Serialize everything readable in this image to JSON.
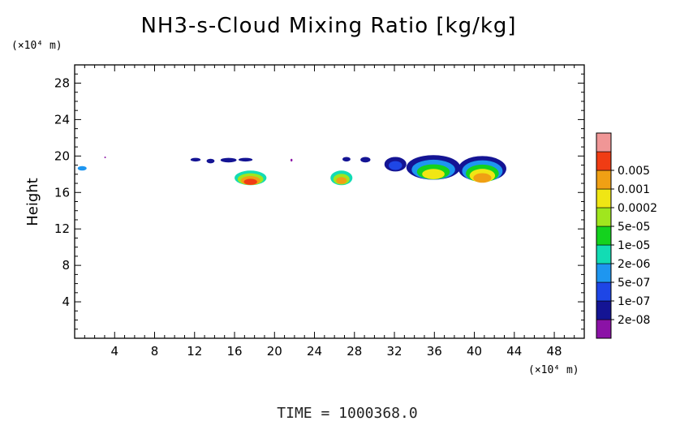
{
  "chart_data": {
    "type": "heatmap",
    "title": "NH3-s-Cloud Mixing Ratio [kg/kg]",
    "ylabel": "Height",
    "x_unit": "(×10⁴ m)",
    "y_unit": "(×10⁴ m)",
    "xlim": [
      0,
      51
    ],
    "ylim": [
      0,
      30
    ],
    "x_ticks": [
      "4",
      "8",
      "12",
      "16",
      "20",
      "24",
      "28",
      "32",
      "36",
      "40",
      "44",
      "48"
    ],
    "x_tick_values": [
      4,
      8,
      12,
      16,
      20,
      24,
      28,
      32,
      36,
      40,
      44,
      48
    ],
    "y_ticks": [
      "4",
      "8",
      "12",
      "16",
      "20",
      "24",
      "28"
    ],
    "y_tick_values": [
      4,
      8,
      12,
      16,
      20,
      24,
      28
    ],
    "colorbar": {
      "labels": [
        "2e-08",
        "1e-07",
        "5e-07",
        "2e-06",
        "1e-05",
        "5e-05",
        "0.0002",
        "0.001",
        "0.005"
      ],
      "colors": [
        "#8b12a6",
        "#141494",
        "#1e46e6",
        "#1e96f0",
        "#12dcb4",
        "#14d21e",
        "#a0e61e",
        "#f0e614",
        "#f0a014",
        "#f03c14",
        "#f09696"
      ]
    },
    "regions": [
      {
        "x": [
          0.3,
          1.2
        ],
        "y": [
          18.4,
          18.9
        ],
        "levels": [
          3
        ]
      },
      {
        "x": [
          3.0,
          3.1
        ],
        "y": [
          19.8,
          19.9
        ],
        "levels": [
          0
        ]
      },
      {
        "x": [
          11.6,
          12.6
        ],
        "y": [
          19.4,
          19.8
        ],
        "levels": [
          1
        ]
      },
      {
        "x": [
          13.2,
          14.0
        ],
        "y": [
          19.2,
          19.7
        ],
        "levels": [
          1
        ]
      },
      {
        "x": [
          14.6,
          16.2
        ],
        "y": [
          19.3,
          19.8
        ],
        "levels": [
          1
        ]
      },
      {
        "x": [
          16.4,
          17.8
        ],
        "y": [
          19.4,
          19.8
        ],
        "levels": [
          1
        ]
      },
      {
        "x": [
          16.0,
          19.2
        ],
        "y": [
          16.8,
          18.4
        ],
        "levels": [
          4,
          6,
          8,
          9
        ]
      },
      {
        "x": [
          21.6,
          21.8
        ],
        "y": [
          19.4,
          19.7
        ],
        "levels": [
          0
        ]
      },
      {
        "x": [
          25.6,
          27.8
        ],
        "y": [
          16.8,
          18.4
        ],
        "levels": [
          4,
          6,
          8
        ]
      },
      {
        "x": [
          26.8,
          27.6
        ],
        "y": [
          19.4,
          19.9
        ],
        "levels": [
          1
        ]
      },
      {
        "x": [
          28.6,
          29.6
        ],
        "y": [
          19.3,
          19.9
        ],
        "levels": [
          1
        ]
      },
      {
        "x": [
          31.0,
          33.2
        ],
        "y": [
          18.3,
          19.9
        ],
        "levels": [
          1,
          2
        ]
      },
      {
        "x": [
          33.2,
          38.6
        ],
        "y": [
          17.4,
          20.1
        ],
        "levels": [
          1,
          3,
          5,
          7
        ]
      },
      {
        "x": [
          38.4,
          43.2
        ],
        "y": [
          17.2,
          20.0
        ],
        "levels": [
          1,
          3,
          5,
          7,
          8
        ]
      }
    ],
    "footer": "TIME  =  1000368.0"
  }
}
